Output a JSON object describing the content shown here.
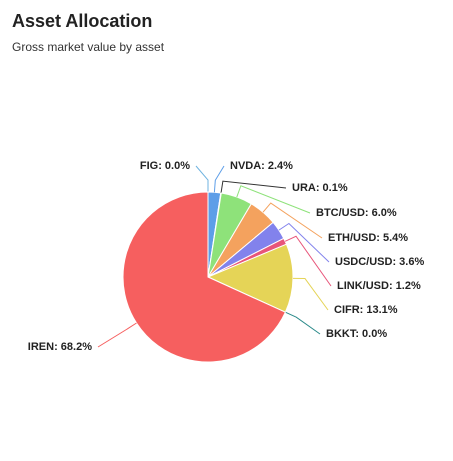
{
  "chart_data": {
    "type": "pie",
    "title": "Asset Allocation",
    "subtitle": "Gross market value by asset",
    "categories": [
      "FIG",
      "NVDA",
      "URA",
      "BTC/USD",
      "ETH/USD",
      "USDC/USD",
      "LINK/USD",
      "CIFR",
      "BKKT",
      "IREN"
    ],
    "values": [
      0.0,
      2.4,
      0.1,
      6.0,
      5.4,
      3.6,
      1.2,
      13.1,
      0.0,
      68.2
    ],
    "value_labels": [
      "FIG: 0.0%",
      "NVDA: 2.4%",
      "URA: 0.1%",
      "BTC/USD: 6.0%",
      "ETH/USD: 5.4%",
      "USDC/USD: 3.6%",
      "LINK/USD: 1.2%",
      "CIFR: 13.1%",
      "BKKT: 0.0%",
      "IREN: 68.2%"
    ],
    "colors": [
      "#6fb3e0",
      "#5d9ee8",
      "#333333",
      "#8ee27a",
      "#f4a25e",
      "#8282ec",
      "#e8557a",
      "#e5d457",
      "#2b8a8a",
      "#f65f5f"
    ]
  }
}
